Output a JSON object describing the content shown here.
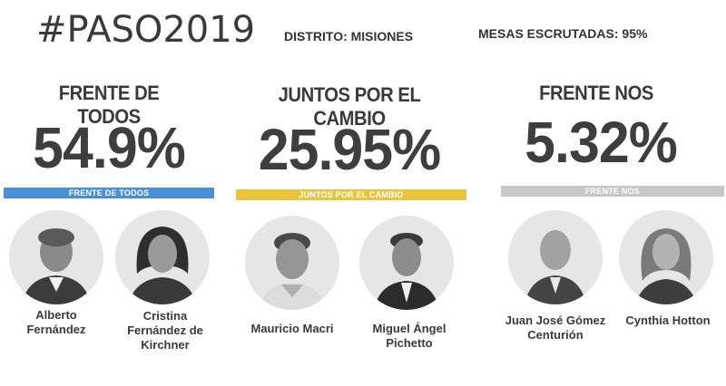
{
  "header": {
    "hashtag": "#PASO2019",
    "district": "DISTRITO: MISIONES",
    "tables_counted": "MESAS ESCRUTADAS: 95%"
  },
  "parties": [
    {
      "name": "FRENTE DE TODOS",
      "percent": "54.9%",
      "bar_label": "FRENTE DE TODOS",
      "bar_color": "#4a90d9",
      "candidates": [
        {
          "line1": "Alberto",
          "line2": "Fernández",
          "line3": ""
        },
        {
          "line1": "Cristina",
          "line2": "Fernández de",
          "line3": "Kirchner"
        }
      ]
    },
    {
      "name": "JUNTOS POR EL CAMBIO",
      "percent": "25.95%",
      "bar_label": "JUNTOS POR EL CAMBIO",
      "bar_color": "#e8c53a",
      "candidates": [
        {
          "line1": "Mauricio Macri",
          "line2": "",
          "line3": ""
        },
        {
          "line1": "Miguel Ángel",
          "line2": "Pichetto",
          "line3": ""
        }
      ]
    },
    {
      "name": "FRENTE NOS",
      "percent": "5.32%",
      "bar_label": "FRENTE NOS",
      "bar_color": "#c7c7c7",
      "candidates": [
        {
          "line1": "Juan José Gómez",
          "line2": "Centurión",
          "line3": ""
        },
        {
          "line1": "Cynthia Hotton",
          "line2": "",
          "line3": ""
        }
      ]
    }
  ]
}
